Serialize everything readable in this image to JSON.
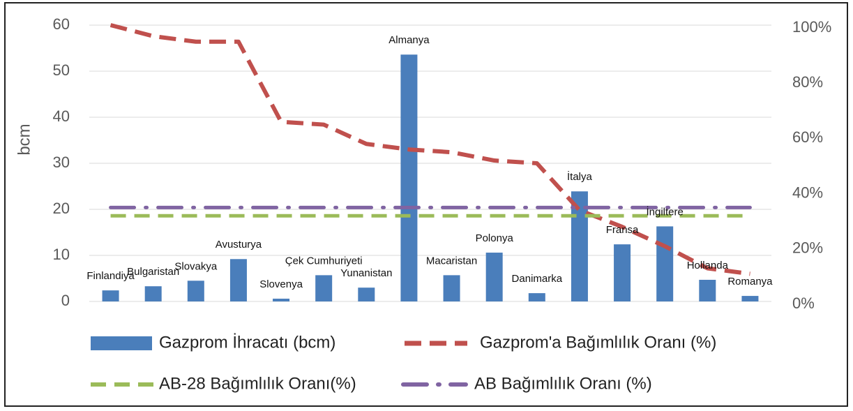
{
  "chart_data": {
    "type": "bar",
    "y_label": "bcm",
    "categories": [
      "Finlandiya",
      "Bulgaristan",
      "Slovakya",
      "Avusturya",
      "Slovenya",
      "Çek Cumhuriyeti",
      "Yunanistan",
      "Almanya",
      "Macaristan",
      "Polonya",
      "Danimarka",
      "İtalya",
      "Fransa",
      "İngiltere",
      "Hollanda",
      "Romanya"
    ],
    "series": [
      {
        "name": "Gazprom İhracatı (bcm)",
        "color": "#4a7ebb",
        "type": "bar",
        "values": [
          2.4,
          3.3,
          4.5,
          9.2,
          0.6,
          5.7,
          3.0,
          53.6,
          5.7,
          10.6,
          1.8,
          23.9,
          12.4,
          16.3,
          4.7,
          1.2
        ]
      },
      {
        "name": "Gazprom'a Bağımlılık Oranı (%)",
        "color": "#c0504d",
        "type": "line",
        "axis": "y2",
        "values": [
          100,
          96,
          94,
          94,
          65,
          64,
          57,
          55,
          54,
          51,
          50,
          33,
          27,
          20,
          12,
          10
        ]
      },
      {
        "name": "AB-28 Bağımlılık Oranı(%)",
        "color": "#9bbb59",
        "type": "line",
        "axis": "y2",
        "values": [
          31,
          31,
          31,
          31,
          31,
          31,
          31,
          31,
          31,
          31,
          31,
          31,
          31,
          31,
          31,
          31
        ]
      },
      {
        "name": "AB Bağımlılık Oranı (%)",
        "color": "#8064a2",
        "type": "line",
        "axis": "y2",
        "values": [
          34,
          34,
          34,
          34,
          34,
          34,
          34,
          34,
          34,
          34,
          34,
          34,
          34,
          34,
          34,
          34
        ]
      }
    ],
    "ylim": [
      0,
      60
    ],
    "yticks": [
      0,
      10,
      20,
      30,
      40,
      50,
      60
    ],
    "y2lim": [
      0,
      100
    ],
    "y2ticks": [
      {
        "value": 0,
        "label": "0%"
      },
      {
        "value": 20,
        "label": "20%"
      },
      {
        "value": 40,
        "label": "40%"
      },
      {
        "value": 60,
        "label": "60%"
      },
      {
        "value": 80,
        "label": "80%"
      },
      {
        "value": 100,
        "label": "100%"
      }
    ],
    "grid": true,
    "legend": "bottom"
  }
}
